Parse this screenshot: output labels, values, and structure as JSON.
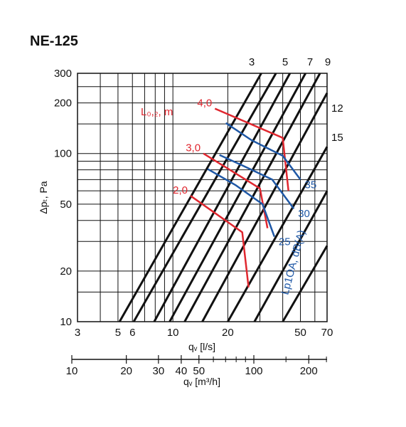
{
  "title": "NE-125",
  "chart_data": {
    "type": "line",
    "x_scale": "log",
    "y_scale": "log",
    "xlim": [
      3,
      70
    ],
    "ylim": [
      10,
      300
    ],
    "x_ticks": [
      3,
      5,
      6,
      10,
      20,
      50,
      70
    ],
    "x_tick_labels": [
      "3",
      "5",
      "6",
      "10",
      "20",
      "50",
      "70"
    ],
    "y_ticks": [
      10,
      20,
      50,
      100,
      200,
      300
    ],
    "y_tick_labels": [
      "10",
      "20",
      "50",
      "100",
      "200",
      "300"
    ],
    "x_grid": [
      3,
      4,
      5,
      6,
      7,
      8,
      9,
      10,
      20,
      30,
      40,
      50,
      60,
      70
    ],
    "y_grid": [
      10,
      15,
      20,
      30,
      40,
      50,
      60,
      70,
      80,
      90,
      100,
      150,
      200,
      250,
      300
    ],
    "grid": true,
    "xlabel": "qᵥ [l/s]",
    "ylabel": "Δpₜ, Pa",
    "second_axis": {
      "label": "qᵥ [m³/h]",
      "scale": "log",
      "lim": [
        10.8,
        252
      ],
      "ticks": [
        10,
        20,
        30,
        40,
        50,
        100,
        200
      ],
      "tick_labels": [
        "10",
        "20",
        "30",
        "40",
        "50",
        "100",
        "200"
      ],
      "minor_ticks": [
        60,
        70,
        80,
        90,
        150,
        250
      ]
    },
    "setting_lines": {
      "name_labels": [
        "3",
        "5",
        "7",
        "9",
        "12",
        "15"
      ],
      "series": [
        {
          "label": "",
          "points": [
            [
              5.1,
              10
            ],
            [
              30.5,
              300
            ]
          ]
        },
        {
          "label": "",
          "points": [
            [
              6.1,
              10
            ],
            [
              36.7,
              300
            ]
          ]
        },
        {
          "label": "3",
          "points": [
            [
              7.9,
              10
            ],
            [
              43.8,
              300
            ]
          ]
        },
        {
          "label": "",
          "points": [
            [
              9.6,
              10
            ],
            [
              53.3,
              300
            ]
          ]
        },
        {
          "label": "5",
          "points": [
            [
              11.6,
              10
            ],
            [
              64.0,
              300
            ]
          ]
        },
        {
          "label": "7",
          "points": [
            [
              14.5,
              10
            ],
            [
              80.2,
              300
            ]
          ]
        },
        {
          "label": "9",
          "points": [
            [
              20.0,
              10
            ],
            [
              118.5,
              300
            ]
          ]
        },
        {
          "label": "12",
          "points": [
            [
              28.0,
              10
            ],
            [
              160.0,
              300
            ]
          ]
        },
        {
          "label": "15",
          "points": [
            [
              40.0,
              10
            ],
            [
              250.0,
              300
            ]
          ]
        }
      ]
    },
    "throw_lines": {
      "title": "L₀,₂, m",
      "series": [
        {
          "label": "4,0",
          "points": [
            [
              17.0,
              185
            ],
            [
              40.0,
              124
            ],
            [
              43.0,
              60
            ]
          ]
        },
        {
          "label": "3,0",
          "points": [
            [
              14.7,
              100
            ],
            [
              30.0,
              62
            ],
            [
              33.0,
              36
            ]
          ]
        },
        {
          "label": "2,0",
          "points": [
            [
              12.5,
              56
            ],
            [
              24.0,
              34
            ],
            [
              26.0,
              16
            ]
          ]
        }
      ]
    },
    "noise_lines": {
      "title": "Lp1OA, dB(A)",
      "series": [
        {
          "label": "35",
          "points": [
            [
              19.5,
              152
            ],
            [
              27.0,
              120
            ],
            [
              40.0,
              97
            ],
            [
              50.0,
              70
            ]
          ]
        },
        {
          "label": "30",
          "points": [
            [
              18.0,
              98
            ],
            [
              24.0,
              85
            ],
            [
              35.0,
              70
            ],
            [
              46.0,
              47
            ]
          ]
        },
        {
          "label": "25",
          "points": [
            [
              15.5,
              81
            ],
            [
              22.0,
              65
            ],
            [
              31.0,
              50
            ],
            [
              36.0,
              32
            ]
          ]
        }
      ]
    }
  }
}
